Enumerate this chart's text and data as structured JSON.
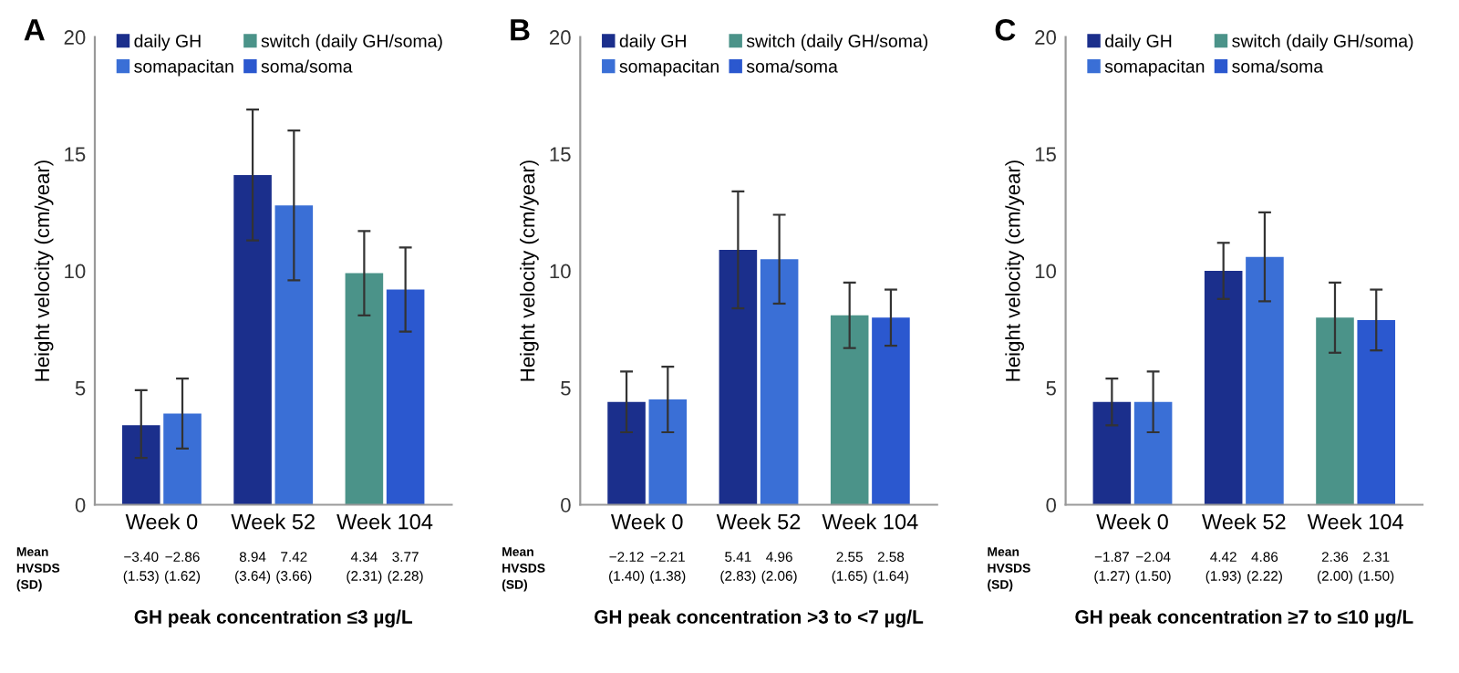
{
  "chart_data": [
    {
      "type": "bar",
      "title": "A",
      "ylabel": "Height velocity (cm/year)",
      "xlabel": "GH peak concentration ≤3 µg/L",
      "categories": [
        "Week 0",
        "Week 52",
        "Week 104"
      ],
      "ylim": [
        0,
        20
      ],
      "yticks": [
        0,
        5,
        10,
        15,
        20
      ],
      "legend": "top",
      "grid": false,
      "series": [
        {
          "name": "daily GH",
          "color": "#1b2f8c",
          "values": [
            3.4,
            14.1,
            null
          ],
          "errors": [
            [
              2.0,
              4.9
            ],
            [
              11.3,
              16.9
            ],
            null
          ]
        },
        {
          "name": "somapacitan",
          "color": "#3a6fd6",
          "values": [
            3.9,
            12.8,
            null
          ],
          "errors": [
            [
              2.4,
              5.4
            ],
            [
              9.6,
              16.0
            ],
            null
          ]
        },
        {
          "name": "switch (daily GH/soma)",
          "color": "#4b9389",
          "values": [
            null,
            null,
            9.9
          ],
          "errors": [
            null,
            null,
            [
              8.1,
              11.7
            ]
          ]
        },
        {
          "name": "soma/soma",
          "color": "#2b58cf",
          "values": [
            null,
            null,
            9.2
          ],
          "errors": [
            null,
            null,
            [
              7.4,
              11.0
            ]
          ]
        }
      ],
      "annotations": [
        "Mean\nHVSDS\n(SD)",
        "−3.40\n(1.53)",
        "−2.86\n(1.62)",
        "8.94\n(3.64)",
        "7.42\n(3.66)",
        "4.34\n(2.31)",
        "3.77\n(2.28)"
      ]
    },
    {
      "type": "bar",
      "title": "B",
      "ylabel": "Height velocity (cm/year)",
      "xlabel": "GH peak concentration >3 to <7 µg/L",
      "categories": [
        "Week 0",
        "Week 52",
        "Week 104"
      ],
      "ylim": [
        0,
        20
      ],
      "yticks": [
        0,
        5,
        10,
        15,
        20
      ],
      "legend": "top",
      "grid": false,
      "series": [
        {
          "name": "daily GH",
          "color": "#1b2f8c",
          "values": [
            4.4,
            10.9,
            null
          ],
          "errors": [
            [
              3.1,
              5.7
            ],
            [
              8.4,
              13.4
            ],
            null
          ]
        },
        {
          "name": "somapacitan",
          "color": "#3a6fd6",
          "values": [
            4.5,
            10.5,
            null
          ],
          "errors": [
            [
              3.1,
              5.9
            ],
            [
              8.6,
              12.4
            ],
            null
          ]
        },
        {
          "name": "switch (daily GH/soma)",
          "color": "#4b9389",
          "values": [
            null,
            null,
            8.1
          ],
          "errors": [
            null,
            null,
            [
              6.7,
              9.5
            ]
          ]
        },
        {
          "name": "soma/soma",
          "color": "#2b58cf",
          "values": [
            null,
            null,
            8.0
          ],
          "errors": [
            null,
            null,
            [
              6.8,
              9.2
            ]
          ]
        }
      ],
      "annotations": [
        "Mean\nHVSDS\n(SD)",
        "−2.12\n(1.40)",
        "−2.21\n(1.38)",
        "5.41\n(2.83)",
        "4.96\n(2.06)",
        "2.55\n(1.65)",
        "2.58\n(1.64)"
      ]
    },
    {
      "type": "bar",
      "title": "C",
      "ylabel": "Height velocity (cm/year)",
      "xlabel": "GH peak concentration ≥7 to ≤10 µg/L",
      "categories": [
        "Week 0",
        "Week 52",
        "Week 104"
      ],
      "ylim": [
        0,
        20
      ],
      "yticks": [
        0,
        5,
        10,
        15,
        20
      ],
      "legend": "top",
      "grid": false,
      "series": [
        {
          "name": "daily GH",
          "color": "#1b2f8c",
          "values": [
            4.4,
            10.0,
            null
          ],
          "errors": [
            [
              3.4,
              5.4
            ],
            [
              8.8,
              11.2
            ],
            null
          ]
        },
        {
          "name": "somapacitan",
          "color": "#3a6fd6",
          "values": [
            4.4,
            10.6,
            null
          ],
          "errors": [
            [
              3.1,
              5.7
            ],
            [
              8.7,
              12.5
            ],
            null
          ]
        },
        {
          "name": "switch (daily GH/soma)",
          "color": "#4b9389",
          "values": [
            null,
            null,
            8.0
          ],
          "errors": [
            null,
            null,
            [
              6.5,
              9.5
            ]
          ]
        },
        {
          "name": "soma/soma",
          "color": "#2b58cf",
          "values": [
            null,
            null,
            7.9
          ],
          "errors": [
            null,
            null,
            [
              6.6,
              9.2
            ]
          ]
        }
      ],
      "annotations": [
        "Mean\nHVSDS\n(SD)",
        "−1.87\n(1.27)",
        "−2.04\n(1.50)",
        "4.42\n(1.93)",
        "4.86\n(2.22)",
        "2.36\n(2.00)",
        "2.31\n(1.50)"
      ]
    }
  ]
}
